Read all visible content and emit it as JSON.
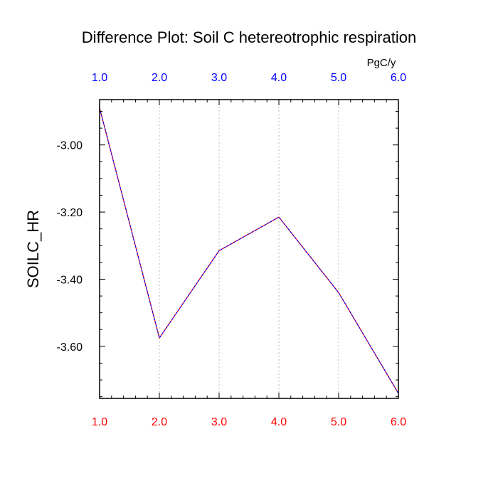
{
  "title": "Difference Plot: Soil C hetereotrophic respiration",
  "units": "PgC/y",
  "colors": {
    "top_ticks": "#0000ff",
    "bottom_ticks": "#ff0000",
    "line": "#6a00d8",
    "grid": "#bbbbbb",
    "axes": "#000000"
  },
  "chart_data": {
    "type": "line",
    "title": "Difference Plot: Soil C hetereotrophic respiration",
    "ylabel": "SOILC_HR",
    "units": "PgC/y",
    "x": [
      1.0,
      2.0,
      3.0,
      4.0,
      5.0,
      6.0
    ],
    "x_tick_labels": [
      "1.0",
      "2.0",
      "3.0",
      "4.0",
      "5.0",
      "6.0"
    ],
    "xlim": [
      1.0,
      6.0
    ],
    "series": [
      {
        "values": [
          -2.89,
          -3.575,
          -3.315,
          -3.215,
          -3.44,
          -3.74
        ]
      }
    ],
    "ylim": [
      -3.755,
      -2.865
    ],
    "y_ticks": [
      -3.0,
      -3.2,
      -3.4,
      -3.6
    ],
    "y_tick_labels": [
      "-3.00",
      "-3.20",
      "-3.40",
      "-3.60"
    ],
    "grid": "vertical dotted at major x ticks",
    "line_style": "dashed"
  }
}
